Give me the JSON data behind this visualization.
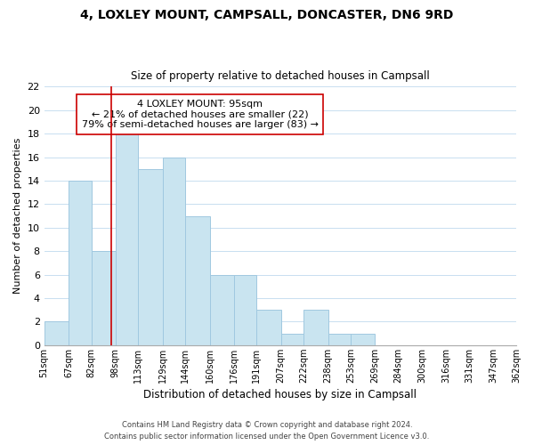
{
  "title": "4, LOXLEY MOUNT, CAMPSALL, DONCASTER, DN6 9RD",
  "subtitle": "Size of property relative to detached houses in Campsall",
  "xlabel": "Distribution of detached houses by size in Campsall",
  "ylabel": "Number of detached properties",
  "bar_color": "#c9e4f0",
  "bar_edgecolor": "#a0c8e0",
  "background_color": "#ffffff",
  "grid_color": "#c8dff0",
  "bins": [
    51,
    67,
    82,
    98,
    113,
    129,
    144,
    160,
    176,
    191,
    207,
    222,
    238,
    253,
    269,
    284,
    300,
    316,
    331,
    347,
    362
  ],
  "counts": [
    2,
    14,
    8,
    18,
    15,
    16,
    11,
    6,
    6,
    3,
    1,
    3,
    1,
    1,
    0,
    0,
    0,
    0,
    0,
    0
  ],
  "tick_labels": [
    "51sqm",
    "67sqm",
    "82sqm",
    "98sqm",
    "113sqm",
    "129sqm",
    "144sqm",
    "160sqm",
    "176sqm",
    "191sqm",
    "207sqm",
    "222sqm",
    "238sqm",
    "253sqm",
    "269sqm",
    "284sqm",
    "300sqm",
    "316sqm",
    "331sqm",
    "347sqm",
    "362sqm"
  ],
  "vline_x": 95,
  "vline_color": "#cc0000",
  "annotation_line1": "4 LOXLEY MOUNT: 95sqm",
  "annotation_line2": "← 21% of detached houses are smaller (22)",
  "annotation_line3": "79% of semi-detached houses are larger (83) →",
  "ylim": [
    0,
    22
  ],
  "yticks": [
    0,
    2,
    4,
    6,
    8,
    10,
    12,
    14,
    16,
    18,
    20,
    22
  ],
  "footnote1": "Contains HM Land Registry data © Crown copyright and database right 2024.",
  "footnote2": "Contains public sector information licensed under the Open Government Licence v3.0."
}
